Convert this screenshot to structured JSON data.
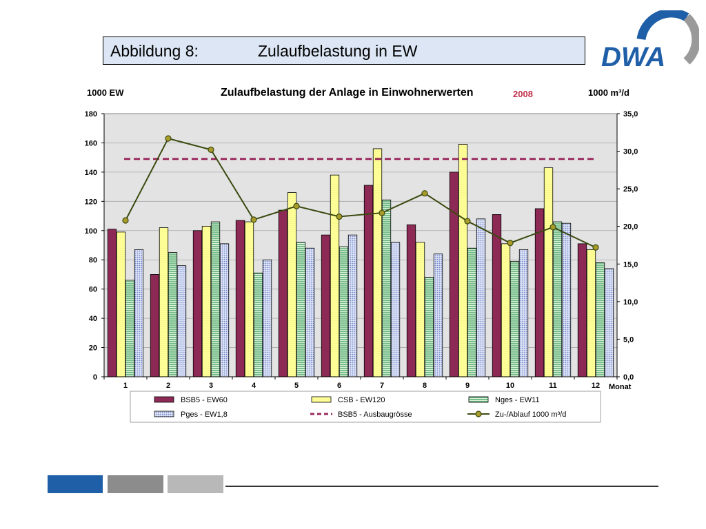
{
  "header": {
    "figure_number": "Abbildung 8:",
    "figure_title": "Zulaufbelastung in EW",
    "logo_text": "DWA"
  },
  "colors": {
    "bsb5": "#8c2a55",
    "csb": "#ffff99",
    "nges": "#4caf6a",
    "pges": "#8fa2dc",
    "ausbau": "#9b2d5f",
    "zulauf": "#3a4a10",
    "year": "#c0304a",
    "plot_bg": "#e3e3e3",
    "footer_blue": "#1f5fa8",
    "footer_gray1": "#8c8c8c",
    "footer_gray2": "#b8b8b8",
    "logo_blue": "#1f5fa8",
    "logo_gray": "#9a9a9a"
  },
  "chart_data": {
    "type": "bar",
    "title": "Zulaufbelastung der Anlage in Einwohnerwerten",
    "year_label": "2008",
    "ylabel_left": "1000 EW",
    "ylabel_right": "1000 m³/d",
    "xlabel": "Monat",
    "categories": [
      "1",
      "2",
      "3",
      "4",
      "5",
      "6",
      "7",
      "8",
      "9",
      "10",
      "11",
      "12"
    ],
    "ylim_left": [
      0,
      180
    ],
    "ylim_right": [
      0,
      35
    ],
    "yticks_left": [
      "0",
      "20",
      "40",
      "60",
      "80",
      "100",
      "120",
      "140",
      "160",
      "180"
    ],
    "yticks_right": [
      "0,0",
      "5,0",
      "10,0",
      "15,0",
      "20,0",
      "25,0",
      "30,0",
      "35,0"
    ],
    "grid": true,
    "legend_position": "bottom",
    "series": [
      {
        "name": "BSB5 - EW60",
        "kind": "bar",
        "axis": "left",
        "values": [
          101,
          70,
          100,
          107,
          114,
          97,
          131,
          104,
          140,
          111,
          115,
          91
        ]
      },
      {
        "name": "CSB - EW120",
        "kind": "bar",
        "axis": "left",
        "values": [
          99,
          102,
          103,
          106,
          126,
          138,
          156,
          92,
          159,
          91,
          143,
          87
        ]
      },
      {
        "name": "Nges - EW11",
        "kind": "bar",
        "axis": "left",
        "values": [
          66,
          85,
          106,
          71,
          92,
          89,
          121,
          68,
          88,
          79,
          106,
          78
        ]
      },
      {
        "name": "Pges  -  EW1,8",
        "kind": "bar",
        "axis": "left",
        "values": [
          87,
          76,
          91,
          80,
          88,
          97,
          92,
          84,
          108,
          87,
          105,
          74
        ]
      },
      {
        "name": "BSB5 - Ausbaugrösse",
        "kind": "hline",
        "axis": "left",
        "value": 149
      },
      {
        "name": "Zu-/Ablauf 1000 m³/d",
        "kind": "line",
        "axis": "right",
        "values": [
          20.8,
          31.7,
          30.2,
          20.9,
          22.7,
          21.3,
          21.8,
          24.4,
          20.7,
          17.8,
          19.9,
          17.2
        ]
      }
    ]
  }
}
